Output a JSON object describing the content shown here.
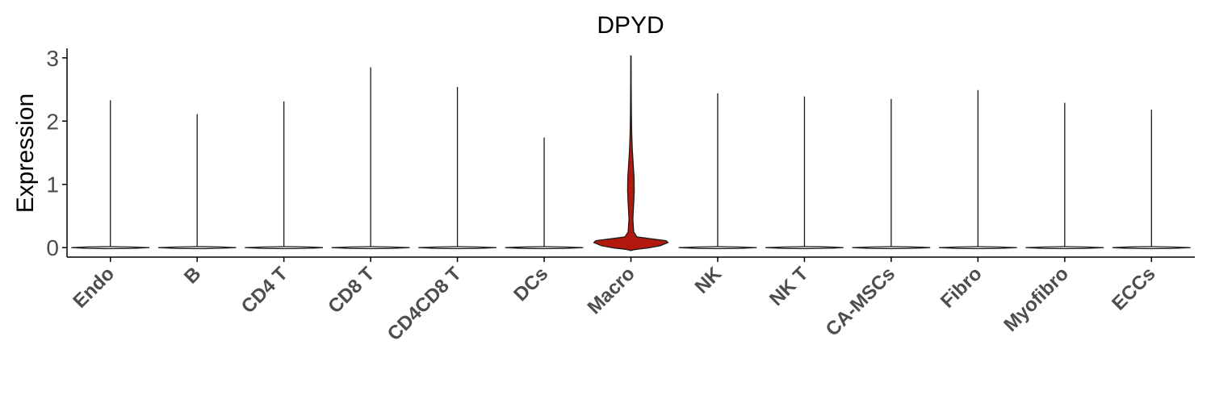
{
  "chart_data": {
    "type": "violin",
    "title": "DPYD",
    "ylabel": "Expression",
    "xlabel": "",
    "ylim": [
      -0.15,
      3.15
    ],
    "yticks": [
      0,
      1,
      2,
      3
    ],
    "categories": [
      "Endo",
      "B",
      "CD4 T",
      "CD8 T",
      "CD4CD8 T",
      "DCs",
      "Macro",
      "NK",
      "NK T",
      "CA-MSCs",
      "Fibro",
      "Myofibro",
      "ECCs"
    ],
    "max_values": [
      2.33,
      2.11,
      2.31,
      2.85,
      2.54,
      1.74,
      3.03,
      2.44,
      2.39,
      2.35,
      2.49,
      2.29,
      2.18
    ],
    "highlight_category": "Macro",
    "colors": {
      "highlight_fill": "#b2180e",
      "default_fill": "#ffffff",
      "outline": "#1a1a1a",
      "axis": "#000000"
    }
  }
}
